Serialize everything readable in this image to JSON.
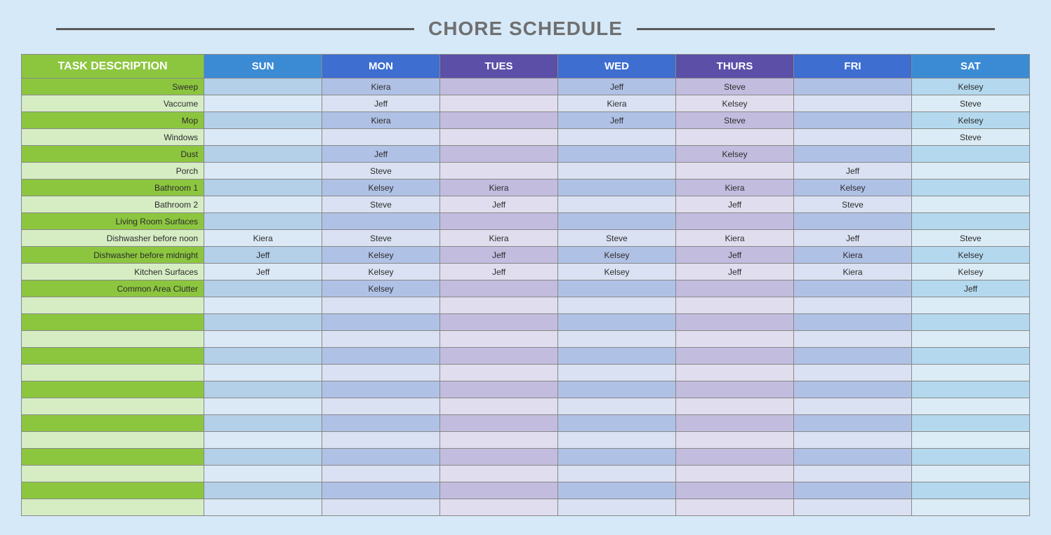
{
  "title": "CHORE SCHEDULE",
  "colors": {
    "page_bg": "#d6e9f8",
    "title_text": "#707070",
    "rules": "#5a5a5a",
    "header_task_bg": "#8cc63f",
    "header_sun_bg": "#3b8bd4",
    "header_mon_bg": "#3d6ed0",
    "header_tues_bg": "#5b4fa8",
    "header_wed_bg": "#3d6ed0",
    "header_thurs_bg": "#5b4fa8",
    "header_fri_bg": "#3d6ed0",
    "header_sat_bg": "#3b8bd4",
    "task_odd_bg": "#8cc63f",
    "task_even_bg": "#d6edc4",
    "sun_odd_bg": "#b4cfe8",
    "sun_even_bg": "#dbe9f6",
    "mon_odd_bg": "#b0c1e6",
    "mon_even_bg": "#d9e1f2",
    "tues_odd_bg": "#c2bcdf",
    "tues_even_bg": "#e0ddee",
    "wed_odd_bg": "#b0c1e6",
    "wed_even_bg": "#d9e1f2",
    "thurs_odd_bg": "#c2bcdf",
    "thurs_even_bg": "#e0ddee",
    "fri_odd_bg": "#b0c1e6",
    "fri_even_bg": "#d9e1f2",
    "sat_odd_bg": "#b4d9ee",
    "sat_even_bg": "#dcecf6",
    "cell_text": "#2c2c2c",
    "border": "#888888"
  },
  "headers": {
    "task": "TASK DESCRIPTION",
    "days": [
      "SUN",
      "MON",
      "TUES",
      "WED",
      "THURS",
      "FRI",
      "SAT"
    ]
  },
  "column_keys": [
    "sun",
    "mon",
    "tues",
    "wed",
    "thurs",
    "fri",
    "sat"
  ],
  "rows": [
    {
      "task": "Sweep",
      "cells": [
        "",
        "Kiera",
        "",
        "Jeff",
        "Steve",
        "",
        "Kelsey"
      ]
    },
    {
      "task": "Vaccume",
      "cells": [
        "",
        "Jeff",
        "",
        "Kiera",
        "Kelsey",
        "",
        "Steve"
      ]
    },
    {
      "task": "Mop",
      "cells": [
        "",
        "Kiera",
        "",
        "Jeff",
        "Steve",
        "",
        "Kelsey"
      ]
    },
    {
      "task": "Windows",
      "cells": [
        "",
        "",
        "",
        "",
        "",
        "",
        "Steve"
      ]
    },
    {
      "task": "Dust",
      "cells": [
        "",
        "Jeff",
        "",
        "",
        "Kelsey",
        "",
        ""
      ]
    },
    {
      "task": "Porch",
      "cells": [
        "",
        "Steve",
        "",
        "",
        "",
        "Jeff",
        ""
      ]
    },
    {
      "task": "Bathroom 1",
      "cells": [
        "",
        "Kelsey",
        "Kiera",
        "",
        "Kiera",
        "Kelsey",
        ""
      ]
    },
    {
      "task": "Bathroom 2",
      "cells": [
        "",
        "Steve",
        "Jeff",
        "",
        "Jeff",
        "Steve",
        ""
      ]
    },
    {
      "task": "Living Room Surfaces",
      "cells": [
        "",
        "",
        "",
        "",
        "",
        "",
        ""
      ]
    },
    {
      "task": "Dishwasher before noon",
      "cells": [
        "Kiera",
        "Steve",
        "Kiera",
        "Steve",
        "Kiera",
        "Jeff",
        "Steve"
      ]
    },
    {
      "task": "Dishwasher before midnight",
      "cells": [
        "Jeff",
        "Kelsey",
        "Jeff",
        "Kelsey",
        "Jeff",
        "Kiera",
        "Kelsey"
      ]
    },
    {
      "task": "Kitchen Surfaces",
      "cells": [
        "Jeff",
        "Kelsey",
        "Jeff",
        "Kelsey",
        "Jeff",
        "Kiera",
        "Kelsey"
      ]
    },
    {
      "task": "Common Area Clutter",
      "cells": [
        "",
        "Kelsey",
        "",
        "",
        "",
        "",
        "Jeff"
      ]
    },
    {
      "task": "",
      "cells": [
        "",
        "",
        "",
        "",
        "",
        "",
        ""
      ]
    },
    {
      "task": "",
      "cells": [
        "",
        "",
        "",
        "",
        "",
        "",
        ""
      ]
    },
    {
      "task": "",
      "cells": [
        "",
        "",
        "",
        "",
        "",
        "",
        ""
      ]
    },
    {
      "task": "",
      "cells": [
        "",
        "",
        "",
        "",
        "",
        "",
        ""
      ]
    },
    {
      "task": "",
      "cells": [
        "",
        "",
        "",
        "",
        "",
        "",
        ""
      ]
    },
    {
      "task": "",
      "cells": [
        "",
        "",
        "",
        "",
        "",
        "",
        ""
      ]
    },
    {
      "task": "",
      "cells": [
        "",
        "",
        "",
        "",
        "",
        "",
        ""
      ]
    },
    {
      "task": "",
      "cells": [
        "",
        "",
        "",
        "",
        "",
        "",
        ""
      ]
    },
    {
      "task": "",
      "cells": [
        "",
        "",
        "",
        "",
        "",
        "",
        ""
      ]
    },
    {
      "task": "",
      "cells": [
        "",
        "",
        "",
        "",
        "",
        "",
        ""
      ]
    },
    {
      "task": "",
      "cells": [
        "",
        "",
        "",
        "",
        "",
        "",
        ""
      ]
    },
    {
      "task": "",
      "cells": [
        "",
        "",
        "",
        "",
        "",
        "",
        ""
      ]
    },
    {
      "task": "",
      "cells": [
        "",
        "",
        "",
        "",
        "",
        "",
        ""
      ]
    }
  ]
}
